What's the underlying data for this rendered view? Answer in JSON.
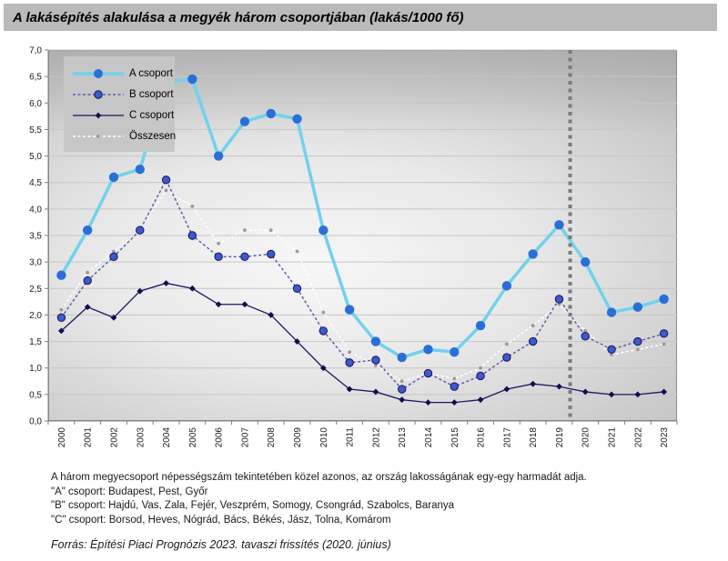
{
  "title": "A lakásépítés alakulása a megyék három csoportjában (lakás/1000 fő)",
  "chart_data": {
    "type": "line",
    "x": [
      "2000",
      "2001",
      "2002",
      "2003",
      "2004",
      "2005",
      "2006",
      "2007",
      "2008",
      "2009",
      "2010",
      "2011",
      "2012",
      "2013",
      "2014",
      "2015",
      "2016",
      "2017",
      "2018",
      "2019",
      "2020",
      "2021",
      "2022",
      "2023"
    ],
    "ylim": [
      0,
      7
    ],
    "y_tick_step": 0.5,
    "y_tick_labels": [
      "0,0",
      "0,5",
      "1,0",
      "1,5",
      "2,0",
      "2,5",
      "3,0",
      "3,5",
      "4,0",
      "4,5",
      "5,0",
      "5,5",
      "6,0",
      "6,5",
      "7,0"
    ],
    "grid": true,
    "legend_position": "top-left-inside",
    "forecast_divider_between": [
      "2019",
      "2020"
    ],
    "series": [
      {
        "name": "A csoport",
        "values": [
          2.75,
          3.6,
          4.6,
          4.75,
          6.4,
          6.45,
          5.0,
          5.65,
          5.8,
          5.7,
          3.6,
          2.1,
          1.5,
          1.2,
          1.35,
          1.3,
          1.8,
          2.55,
          3.15,
          3.7,
          3.0,
          2.05,
          2.15,
          2.3
        ],
        "line_color": "#71d2ec",
        "marker_color": "#2a6fd8",
        "line_style": "solid",
        "line_width": 3.5,
        "marker": "circle-large"
      },
      {
        "name": "B csoport",
        "values": [
          1.95,
          2.65,
          3.1,
          3.6,
          4.55,
          3.5,
          3.1,
          3.1,
          3.15,
          2.5,
          1.7,
          1.1,
          1.15,
          0.6,
          0.9,
          0.65,
          0.85,
          1.2,
          1.5,
          2.3,
          1.6,
          1.35,
          1.5,
          1.65
        ],
        "line_color": "#5a5ea9",
        "marker_color": "#3f58cf",
        "marker_edge": "#141452",
        "line_style": "dashed",
        "line_width": 1.5,
        "marker": "circle-medium"
      },
      {
        "name": "C csoport",
        "values": [
          1.7,
          2.15,
          1.95,
          2.45,
          2.6,
          2.5,
          2.2,
          2.2,
          2.0,
          1.5,
          1.0,
          0.6,
          0.55,
          0.4,
          0.35,
          0.35,
          0.4,
          0.6,
          0.7,
          0.65,
          0.55,
          0.5,
          0.5,
          0.55
        ],
        "line_color": "#181860",
        "marker_color": "#0f0f4d",
        "line_style": "solid",
        "line_width": 1.3,
        "marker": "diamond-small"
      },
      {
        "name": "Összesen",
        "values": [
          2.1,
          2.8,
          3.2,
          3.6,
          4.35,
          4.05,
          3.35,
          3.6,
          3.6,
          3.2,
          2.05,
          1.3,
          1.05,
          0.75,
          0.9,
          0.8,
          1.0,
          1.45,
          1.8,
          2.2,
          1.7,
          1.25,
          1.35,
          1.45
        ],
        "line_color": "#ffffff",
        "marker_color": "#999999",
        "line_style": "dashed",
        "line_width": 1.5,
        "marker": "dot-tiny"
      }
    ]
  },
  "footnotes": {
    "note": "A három megyecsoport népességszám tekintetében közel azonos, az ország lakosságának egy-egy harmadát adja.",
    "group_a": "\"A\" csoport: Budapest, Pest, Győr",
    "group_b": "\"B\" csoport: Hajdú, Vas, Zala, Fejér, Veszprém, Somogy, Csongrád, Szabolcs,  Baranya",
    "group_c": "\"C\" csoport: Borsod, Heves, Nógrád, Bács, Békés, Jász, Tolna, Komárom"
  },
  "source": "Forrás: Építési Piaci Prognózis 2023. tavaszi frissítés (2020. június)",
  "colors": {
    "title_bar_bg": "#bababa",
    "plot_border": "#8c8c8c",
    "gridline": "#c6c6c6",
    "axis": "#808080",
    "forecast_divider": "#7a7a7a",
    "tick_label": "#1a1a1a"
  }
}
